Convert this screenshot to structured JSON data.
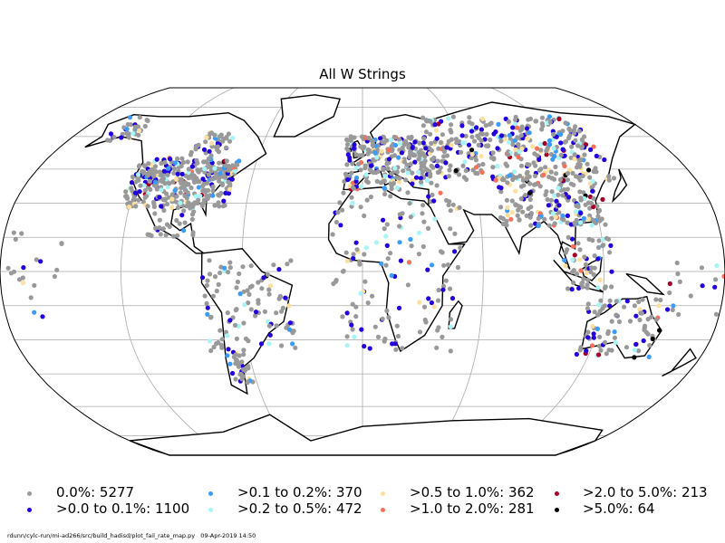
{
  "chart_data": {
    "type": "scatter",
    "title": "All W Strings",
    "projection": "robinson",
    "grid": true,
    "legend_position": "bottom",
    "categories": [
      {
        "label": "0.0%: 5277",
        "count": 5277,
        "color": "#999999"
      },
      {
        "label": ">0.0 to 0.1%: 1100",
        "count": 1100,
        "color": "#2200dd"
      },
      {
        "label": ">0.1 to 0.2%: 370",
        "count": 370,
        "color": "#3b9cf7"
      },
      {
        "label": ">0.2 to 0.5%: 472",
        "count": 472,
        "color": "#a8f4f7"
      },
      {
        "label": ">0.5 to 1.0%: 362",
        "count": 362,
        "color": "#fde0a0"
      },
      {
        "label": ">1.0 to 2.0%: 281",
        "count": 281,
        "color": "#f8705a"
      },
      {
        "label": ">2.0 to 5.0%: 213",
        "count": 213,
        "color": "#a50026"
      },
      {
        "label": ">5.0%: 64",
        "count": 64,
        "color": "#000000"
      }
    ]
  },
  "footer": "rdunn/cylc-run/mi-ad266/src/build_hadisd/plot_fail_rate_map.py   09-Apr-2019 14:50"
}
